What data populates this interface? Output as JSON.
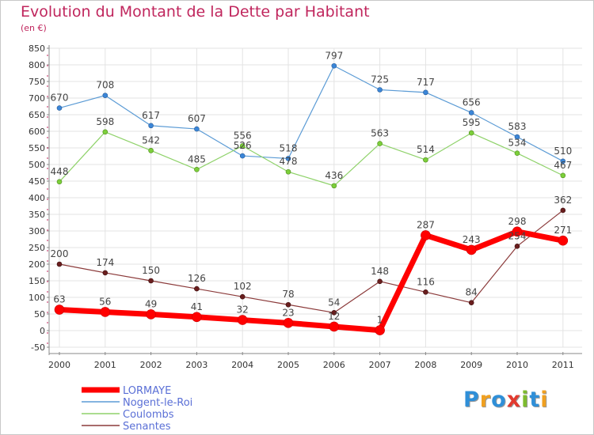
{
  "page": {
    "title": "Evolution du Montant de la Dette par Habitant",
    "subtitle": "(en €)"
  },
  "logo": {
    "text": "Proxiti",
    "colors": [
      "#2f8fd8",
      "#f0a020",
      "#2f8fd8",
      "#e23a2f",
      "#7dbb2f",
      "#2f8fd8",
      "#f0a020"
    ]
  },
  "chart_data": {
    "type": "line",
    "title": "Evolution du Montant de la Dette par Habitant",
    "subtitle": "(en €)",
    "x": [
      "2000",
      "2001",
      "2002",
      "2003",
      "2004",
      "2005",
      "2006",
      "2007",
      "2008",
      "2009",
      "2010",
      "2011"
    ],
    "ylim": [
      -50,
      850
    ],
    "yticks": [
      -50,
      0,
      50,
      100,
      150,
      200,
      250,
      300,
      350,
      400,
      450,
      500,
      550,
      600,
      650,
      700,
      750,
      800,
      850
    ],
    "grid": true,
    "legend_position": "bottom-left",
    "series": [
      {
        "name": "LORMAYE",
        "color": "#ff0000",
        "values": [
          63,
          56,
          49,
          41,
          32,
          23,
          12,
          1,
          287,
          243,
          298,
          271
        ]
      },
      {
        "name": "Nogent-le-Roi",
        "color": "#5b9bd5",
        "values": [
          670,
          708,
          617,
          607,
          526,
          518,
          797,
          725,
          717,
          656,
          583,
          510
        ]
      },
      {
        "name": "Coulombs",
        "color": "#8fd26a",
        "values": [
          448,
          598,
          542,
          485,
          556,
          478,
          436,
          563,
          514,
          595,
          534,
          467
        ]
      },
      {
        "name": "Senantes",
        "color": "#8b3a3a",
        "values": [
          200,
          174,
          150,
          126,
          102,
          78,
          54,
          148,
          116,
          84,
          254,
          362
        ]
      }
    ]
  }
}
